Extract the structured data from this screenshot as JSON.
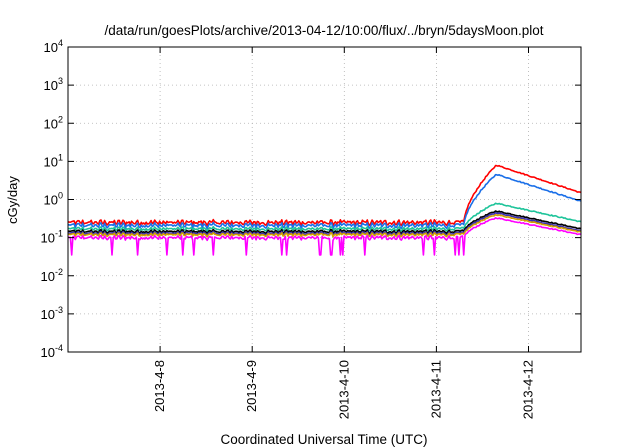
{
  "chart_data": {
    "type": "line",
    "title": "/data/run/goesPlots/archive/2013-04-12/10:00/flux/../bryn/5daysMoon.plot",
    "xlabel": "Coordinated Universal Time (UTC)",
    "ylabel": "cGy/day",
    "yscale": "log",
    "ylim": [
      0.0001,
      10000
    ],
    "xlim": [
      0,
      5.57
    ],
    "grid": true,
    "y_ticks": [
      {
        "value": 0.0001,
        "base": "10",
        "exp": "-4"
      },
      {
        "value": 0.001,
        "base": "10",
        "exp": "-3"
      },
      {
        "value": 0.01,
        "base": "10",
        "exp": "-2"
      },
      {
        "value": 0.1,
        "base": "10",
        "exp": "-1"
      },
      {
        "value": 1,
        "base": "10",
        "exp": "0"
      },
      {
        "value": 10,
        "base": "10",
        "exp": "1"
      },
      {
        "value": 100,
        "base": "10",
        "exp": "2"
      },
      {
        "value": 1000,
        "base": "10",
        "exp": "3"
      },
      {
        "value": 10000,
        "base": "10",
        "exp": "4"
      }
    ],
    "x_ticks": [
      {
        "value": 1,
        "label": "2013-4-8"
      },
      {
        "value": 2,
        "label": "2013-4-9"
      },
      {
        "value": 3,
        "label": "2013-4-10"
      },
      {
        "value": 4,
        "label": "2013-4-11"
      },
      {
        "value": 5,
        "label": "2013-4-12"
      }
    ],
    "series": [
      {
        "color": "#ff0000",
        "baseline": 0.25,
        "peak": 8.0,
        "end": 1.5,
        "noise": 0.12,
        "dips": false
      },
      {
        "color": "#1a6fe8",
        "baseline": 0.21,
        "peak": 4.6,
        "end": 0.9,
        "noise": 0.12,
        "dips": false
      },
      {
        "color": "#1ec49a",
        "baseline": 0.17,
        "peak": 0.8,
        "end": 0.26,
        "noise": 0.09,
        "dips": false
      },
      {
        "color": "#000000",
        "baseline": 0.145,
        "peak": 0.5,
        "end": 0.17,
        "noise": 0.08,
        "dips": false
      },
      {
        "color": "#3a2fb0",
        "baseline": 0.13,
        "peak": 0.45,
        "end": 0.15,
        "noise": 0.08,
        "dips": false
      },
      {
        "color": "#d3a000",
        "baseline": 0.12,
        "peak": 0.4,
        "end": 0.14,
        "noise": 0.08,
        "dips": false
      },
      {
        "color": "#ff00ff",
        "baseline": 0.1,
        "peak": 0.33,
        "end": 0.12,
        "noise": 0.1,
        "dips": true
      }
    ],
    "event": {
      "onset": 4.3,
      "peak_at": 4.65
    }
  }
}
